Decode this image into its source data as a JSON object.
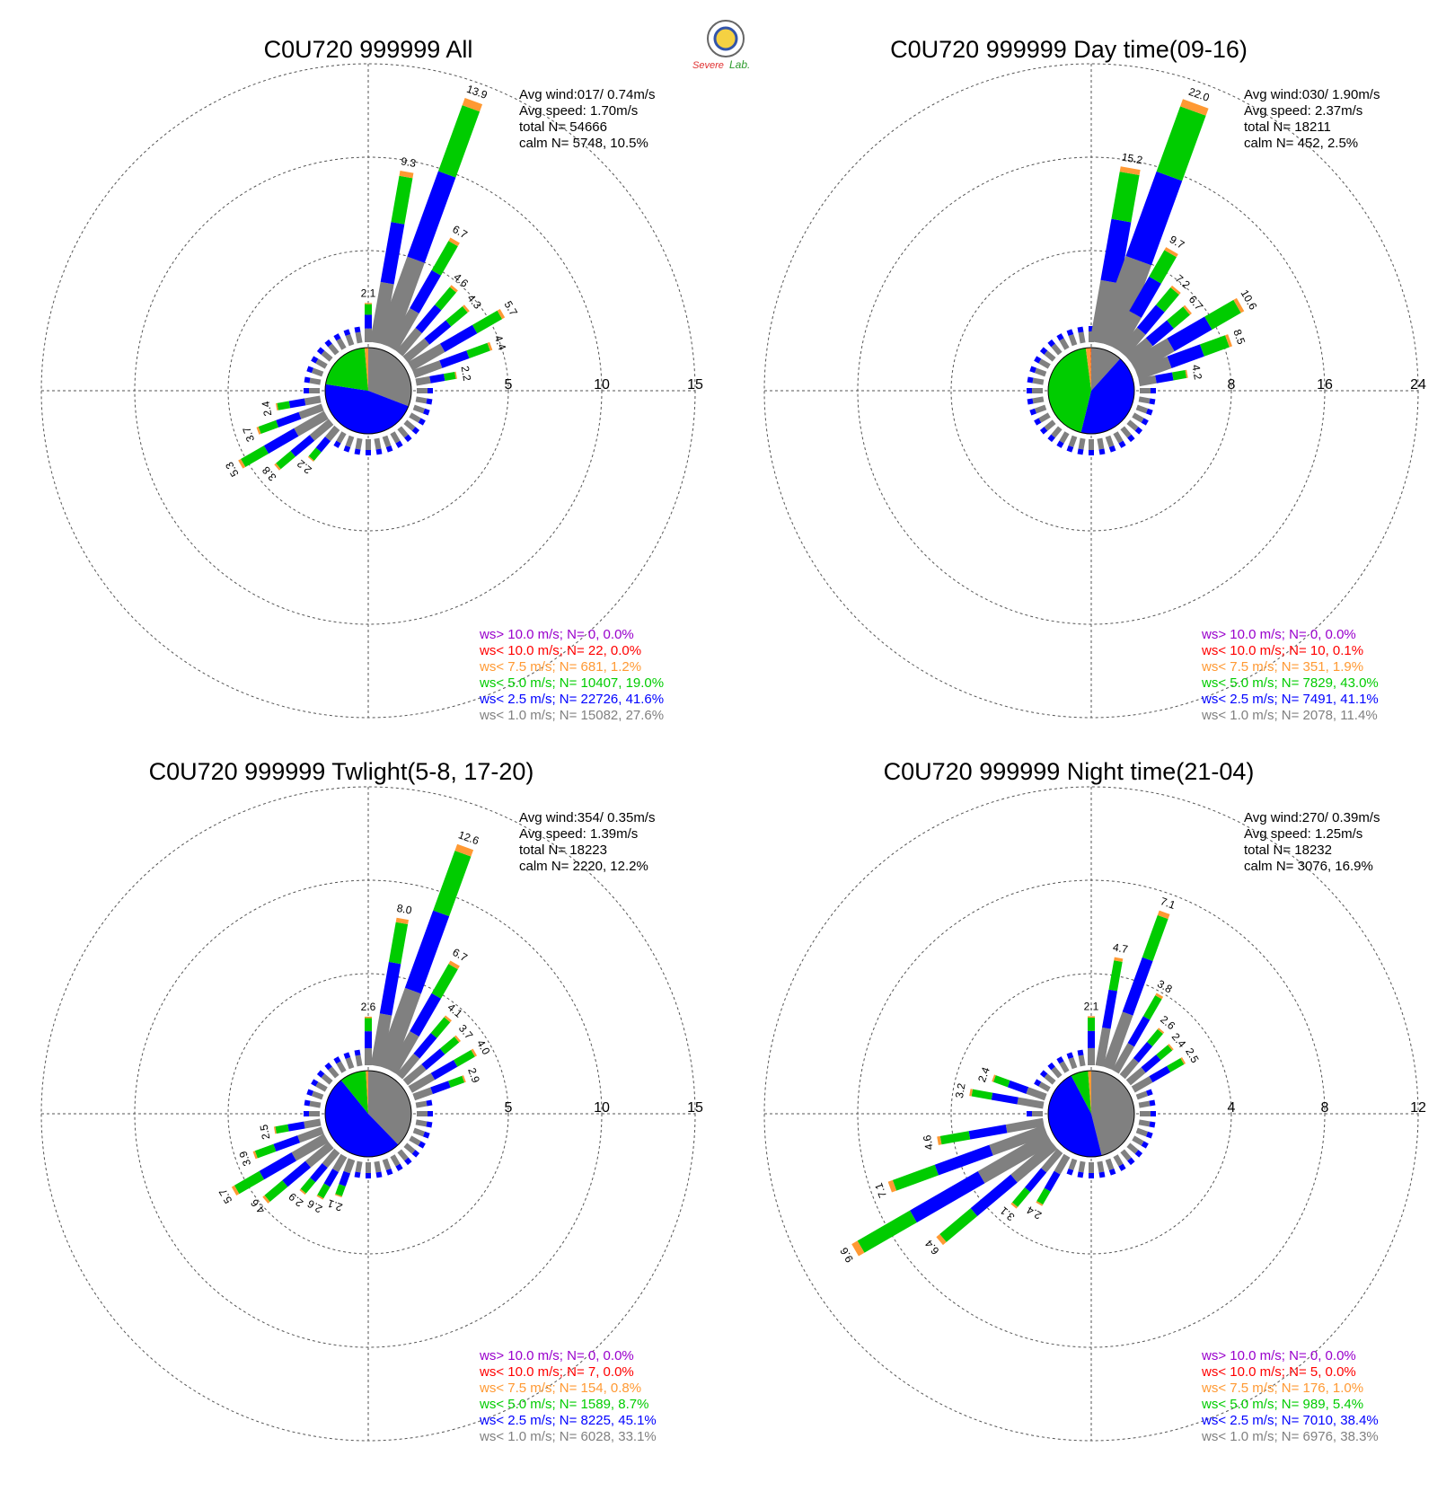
{
  "colors": {
    "gt10": "#9900cc",
    "lt10": "#ff0000",
    "lt7_5": "#ff9933",
    "lt5": "#00cc00",
    "lt2_5": "#0000ff",
    "lt1": "#808080",
    "grid": "#555555"
  },
  "logo": {
    "icon": "severe-storm-lab-seal",
    "text": "SevereStormLab."
  },
  "chart_data": [
    {
      "type": "wind-rose",
      "title": "C0U720 999999 All",
      "ring_labels": [
        "5",
        "10",
        "15"
      ],
      "rmax": 15,
      "info": [
        "Avg wind:017/ 0.74m/s",
        "Avg speed: 1.70m/s",
        "total N=       54666",
        "calm N=   5748,  10.5%"
      ],
      "legend": [
        "ws> 10.0 m/s; N=     0,  0.0%",
        "ws< 10.0 m/s; N=    22,  0.0%",
        "ws<  7.5 m/s; N=   681,  1.2%",
        "ws<  5.0 m/s; N= 10407, 19.0%",
        "ws<  2.5 m/s; N= 22726, 41.6%",
        "ws<  1.0 m/s; N= 15082, 27.6%"
      ],
      "calm_pie": [
        27.6,
        41.6,
        19.0,
        1.2,
        0.0,
        0.0
      ],
      "bars": [
        {
          "dir": 0,
          "total": 2.1,
          "label": "2.1"
        },
        {
          "dir": 10,
          "total": 9.3,
          "label": "9.3"
        },
        {
          "dir": 20,
          "total": 13.9,
          "label": "13.9"
        },
        {
          "dir": 30,
          "total": 6.7,
          "label": "6.7"
        },
        {
          "dir": 40,
          "total": 4.6,
          "label": "4.6"
        },
        {
          "dir": 50,
          "total": 4.3,
          "label": "4.3"
        },
        {
          "dir": 60,
          "total": 5.7,
          "label": "5.7"
        },
        {
          "dir": 70,
          "total": 4.4,
          "label": "4.4"
        },
        {
          "dir": 80,
          "total": 2.2,
          "label": "2.2"
        },
        {
          "dir": 240,
          "total": 5.3,
          "label": "5.3"
        },
        {
          "dir": 250,
          "total": 3.7,
          "label": "3.7"
        },
        {
          "dir": 260,
          "total": 2.4,
          "label": "2.4"
        },
        {
          "dir": 230,
          "total": 3.8,
          "label": "3.8"
        },
        {
          "dir": 220,
          "total": 2.2,
          "label": "2.2"
        }
      ]
    },
    {
      "type": "wind-rose",
      "title": "C0U720 999999 Day time(09-16)",
      "ring_labels": [
        "8",
        "16",
        "24"
      ],
      "rmax": 24,
      "info": [
        "Avg wind:030/ 1.90m/s",
        "Avg speed: 2.37m/s",
        "total N=       18211",
        "calm N=    452,   2.5%"
      ],
      "legend": [
        "ws> 10.0 m/s; N=     0,  0.0%",
        "ws< 10.0 m/s; N=    10,  0.1%",
        "ws<  7.5 m/s; N=   351,  1.9%",
        "ws<  5.0 m/s; N=  7829, 43.0%",
        "ws<  2.5 m/s; N=  7491, 41.1%",
        "ws<  1.0 m/s; N=  2078, 11.4%"
      ],
      "calm_pie": [
        11.4,
        41.1,
        43.0,
        1.9,
        0.1,
        0.0
      ],
      "bars": [
        {
          "dir": 10,
          "total": 15.2,
          "label": "15.2"
        },
        {
          "dir": 20,
          "total": 22.0,
          "label": "22.0"
        },
        {
          "dir": 30,
          "total": 9.7,
          "label": "9.7"
        },
        {
          "dir": 40,
          "total": 7.2,
          "label": "7.2"
        },
        {
          "dir": 50,
          "total": 6.7,
          "label": "6.7"
        },
        {
          "dir": 60,
          "total": 10.6,
          "label": "10.6"
        },
        {
          "dir": 70,
          "total": 8.5,
          "label": "8.5"
        },
        {
          "dir": 80,
          "total": 4.2,
          "label": "4.2"
        }
      ]
    },
    {
      "type": "wind-rose",
      "title": "C0U720 999999 Twlight(5-8, 17-20)",
      "ring_labels": [
        "5",
        "10",
        "15"
      ],
      "rmax": 15,
      "info": [
        "Avg wind:354/ 0.35m/s",
        "Avg speed: 1.39m/s",
        "total N=       18223",
        "calm N=   2220,  12.2%"
      ],
      "legend": [
        "ws> 10.0 m/s; N=     0,  0.0%",
        "ws< 10.0 m/s; N=     7,  0.0%",
        "ws<  7.5 m/s; N=   154,  0.8%",
        "ws<  5.0 m/s; N=  1589,  8.7%",
        "ws<  2.5 m/s; N=  8225, 45.1%",
        "ws<  1.0 m/s; N=  6028, 33.1%"
      ],
      "calm_pie": [
        33.1,
        45.1,
        8.7,
        0.8,
        0.0,
        0.0
      ],
      "bars": [
        {
          "dir": 0,
          "total": 2.6,
          "label": "2.6"
        },
        {
          "dir": 10,
          "total": 8.0,
          "label": "8.0"
        },
        {
          "dir": 20,
          "total": 12.6,
          "label": "12.6"
        },
        {
          "dir": 30,
          "total": 6.7,
          "label": "6.7"
        },
        {
          "dir": 40,
          "total": 4.1,
          "label": "4.1"
        },
        {
          "dir": 50,
          "total": 3.7,
          "label": "3.7"
        },
        {
          "dir": 60,
          "total": 4.0,
          "label": "4.0"
        },
        {
          "dir": 70,
          "total": 2.9,
          "label": "2.9"
        },
        {
          "dir": 240,
          "total": 5.7,
          "label": "5.7"
        },
        {
          "dir": 250,
          "total": 3.9,
          "label": "3.9"
        },
        {
          "dir": 260,
          "total": 2.5,
          "label": "2.5"
        },
        {
          "dir": 230,
          "total": 4.6,
          "label": "4.6"
        },
        {
          "dir": 220,
          "total": 2.9,
          "label": "2.9"
        },
        {
          "dir": 210,
          "total": 2.6,
          "label": "2.6"
        },
        {
          "dir": 200,
          "total": 2.1,
          "label": "2.1"
        }
      ]
    },
    {
      "type": "wind-rose",
      "title": "C0U720 999999 Night time(21-04)",
      "ring_labels": [
        "4",
        "8",
        "12"
      ],
      "rmax": 12,
      "info": [
        "Avg wind:270/ 0.39m/s",
        "Avg speed: 1.25m/s",
        "total N=       18232",
        "calm N=   3076,  16.9%"
      ],
      "legend": [
        "ws> 10.0 m/s; N=     0,  0.0%",
        "ws< 10.0 m/s; N=     5,  0.0%",
        "ws<  7.5 m/s; N=   176,  1.0%",
        "ws<  5.0 m/s; N=   989,  5.4%",
        "ws<  2.5 m/s; N=  7010, 38.4%",
        "ws<  1.0 m/s; N=  6976, 38.3%"
      ],
      "calm_pie": [
        38.3,
        38.4,
        5.4,
        1.0,
        0.0,
        0.0
      ],
      "bars": [
        {
          "dir": 0,
          "total": 2.1,
          "label": "2.1"
        },
        {
          "dir": 10,
          "total": 4.7,
          "label": "4.7"
        },
        {
          "dir": 20,
          "total": 7.1,
          "label": "7.1"
        },
        {
          "dir": 30,
          "total": 3.8,
          "label": "3.8"
        },
        {
          "dir": 40,
          "total": 2.6,
          "label": "2.6"
        },
        {
          "dir": 50,
          "total": 2.4,
          "label": "2.4"
        },
        {
          "dir": 60,
          "total": 2.5,
          "label": "2.5"
        },
        {
          "dir": 290,
          "total": 2.4,
          "label": "2.4"
        },
        {
          "dir": 280,
          "total": 3.2,
          "label": "3.2"
        },
        {
          "dir": 260,
          "total": 4.6,
          "label": "4.6"
        },
        {
          "dir": 250,
          "total": 7.1,
          "label": "7.1"
        },
        {
          "dir": 240,
          "total": 9.6,
          "label": "9.6"
        },
        {
          "dir": 230,
          "total": 6.4,
          "label": "6.4"
        },
        {
          "dir": 220,
          "total": 3.1,
          "label": "3.1"
        },
        {
          "dir": 210,
          "total": 2.4,
          "label": "2.4"
        }
      ]
    }
  ]
}
